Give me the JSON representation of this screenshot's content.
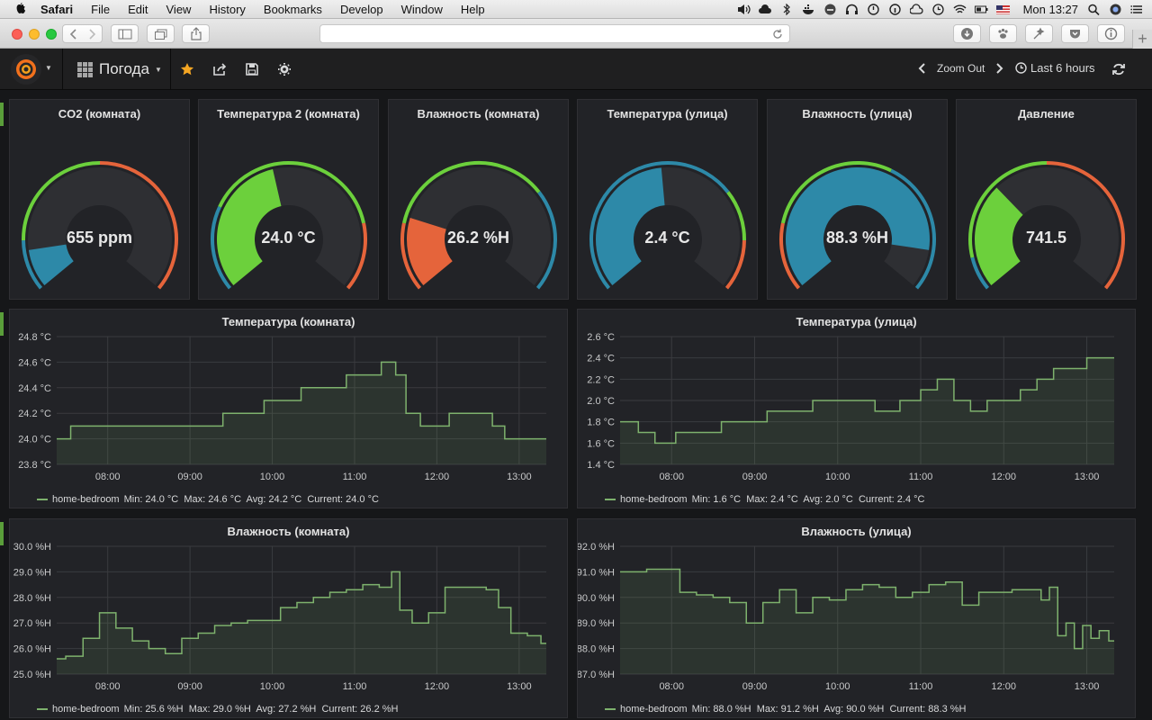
{
  "menubar": {
    "app": "Safari",
    "items": [
      "File",
      "Edit",
      "View",
      "History",
      "Bookmarks",
      "Develop",
      "Window",
      "Help"
    ],
    "clock": "Mon 13:27"
  },
  "navbar": {
    "dashboard_title": "Погода",
    "zoom_out": "Zoom Out",
    "time_range": "Last 6 hours"
  },
  "gauges": [
    {
      "title": "CO2 (комната)",
      "value": "655 ppm",
      "fraction": 0.12,
      "color": "#2d89a8",
      "thresholds": [
        {
          "to": 0.15,
          "color": "#2d89a8"
        },
        {
          "to": 0.5,
          "color": "#6cd03c"
        },
        {
          "to": 1,
          "color": "#e5643b"
        }
      ]
    },
    {
      "title": "Температура 2 (комната)",
      "value": "24.0 °C",
      "fraction": 0.45,
      "color": "#6cd03c",
      "thresholds": [
        {
          "to": 0.25,
          "color": "#2d89a8"
        },
        {
          "to": 0.8,
          "color": "#6cd03c"
        },
        {
          "to": 1,
          "color": "#e5643b"
        }
      ]
    },
    {
      "title": "Влажность (комната)",
      "value": "26.2 %H",
      "fraction": 0.22,
      "color": "#e5643b",
      "thresholds": [
        {
          "to": 0.2,
          "color": "#e5643b"
        },
        {
          "to": 0.7,
          "color": "#6cd03c"
        },
        {
          "to": 1,
          "color": "#2d89a8"
        }
      ]
    },
    {
      "title": "Температура (улица)",
      "value": "2.4 °C",
      "fraction": 0.48,
      "color": "#2d89a8",
      "thresholds": [
        {
          "to": 0.7,
          "color": "#2d89a8"
        },
        {
          "to": 0.85,
          "color": "#6cd03c"
        },
        {
          "to": 1,
          "color": "#e5643b"
        }
      ]
    },
    {
      "title": "Влажность (улица)",
      "value": "88.3 %H",
      "fraction": 0.88,
      "color": "#2d89a8",
      "thresholds": [
        {
          "to": 0.2,
          "color": "#e5643b"
        },
        {
          "to": 0.6,
          "color": "#6cd03c"
        },
        {
          "to": 1,
          "color": "#2d89a8"
        }
      ]
    },
    {
      "title": "Давление",
      "value": "741.5",
      "fraction": 0.33,
      "color": "#6cd03c",
      "thresholds": [
        {
          "to": 0.1,
          "color": "#2d89a8"
        },
        {
          "to": 0.5,
          "color": "#6cd03c"
        },
        {
          "to": 1,
          "color": "#e5643b"
        }
      ]
    }
  ],
  "chart_data": [
    {
      "type": "line",
      "title": "Температура (комната)",
      "yticks": [
        "24.8 °C",
        "24.6 °C",
        "24.4 °C",
        "24.2 °C",
        "24.0 °C",
        "23.8 °C"
      ],
      "ylim": [
        23.8,
        24.8
      ],
      "xticks": [
        "08:00",
        "09:00",
        "10:00",
        "11:00",
        "12:00",
        "13:00"
      ],
      "xtick_hours": [
        8,
        9,
        10,
        11,
        12,
        13
      ],
      "xlim": [
        7.38,
        13.33
      ],
      "x": [
        7.38,
        7.5,
        7.6,
        8.0,
        8.5,
        9.0,
        9.3,
        9.5,
        9.8,
        10.0,
        10.2,
        10.5,
        10.8,
        11.0,
        11.2,
        11.45,
        11.55,
        11.7,
        11.9,
        12.0,
        12.3,
        12.6,
        12.75,
        12.9,
        13.33
      ],
      "series": [
        {
          "name": "home-bedroom",
          "values": [
            24.0,
            24.0,
            24.1,
            24.1,
            24.1,
            24.1,
            24.1,
            24.2,
            24.2,
            24.3,
            24.3,
            24.4,
            24.4,
            24.5,
            24.5,
            24.6,
            24.5,
            24.2,
            24.1,
            24.1,
            24.2,
            24.2,
            24.1,
            24.0,
            24.0
          ]
        }
      ],
      "legend": "home-bedroom",
      "legend_stats": "Min: 24.0 °C  Max: 24.6 °C  Avg: 24.2 °C  Current: 24.0 °C"
    },
    {
      "type": "line",
      "title": "Температура (улица)",
      "yticks": [
        "2.6 °C",
        "2.4 °C",
        "2.2 °C",
        "2.0 °C",
        "1.8 °C",
        "1.6 °C",
        "1.4 °C"
      ],
      "ylim": [
        1.4,
        2.6
      ],
      "xticks": [
        "08:00",
        "09:00",
        "10:00",
        "11:00",
        "12:00",
        "13:00"
      ],
      "xtick_hours": [
        8,
        9,
        10,
        11,
        12,
        13
      ],
      "xlim": [
        7.38,
        13.33
      ],
      "x": [
        7.38,
        7.5,
        7.7,
        7.9,
        8.2,
        8.5,
        8.7,
        9.0,
        9.3,
        9.6,
        9.8,
        10.0,
        10.3,
        10.6,
        10.9,
        11.1,
        11.3,
        11.5,
        11.7,
        11.9,
        12.1,
        12.3,
        12.5,
        12.7,
        12.9,
        13.1,
        13.33
      ],
      "series": [
        {
          "name": "home-bedroom",
          "values": [
            1.8,
            1.8,
            1.7,
            1.6,
            1.7,
            1.7,
            1.8,
            1.8,
            1.9,
            1.9,
            2.0,
            2.0,
            2.0,
            1.9,
            2.0,
            2.1,
            2.2,
            2.0,
            1.9,
            2.0,
            2.0,
            2.1,
            2.2,
            2.3,
            2.3,
            2.4,
            2.4
          ]
        }
      ],
      "legend": "home-bedroom",
      "legend_stats": "Min: 1.6 °C  Max: 2.4 °C  Avg: 2.0 °C  Current: 2.4 °C"
    },
    {
      "type": "line",
      "title": "Влажность (комната)",
      "yticks": [
        "30.0 %H",
        "29.0 %H",
        "28.0 %H",
        "27.0 %H",
        "26.0 %H",
        "25.0 %H"
      ],
      "ylim": [
        25.0,
        30.0
      ],
      "xticks": [
        "08:00",
        "09:00",
        "10:00",
        "11:00",
        "12:00",
        "13:00"
      ],
      "xtick_hours": [
        8,
        9,
        10,
        11,
        12,
        13
      ],
      "xlim": [
        7.38,
        13.33
      ],
      "x": [
        7.38,
        7.6,
        7.8,
        8.0,
        8.2,
        8.4,
        8.6,
        8.8,
        9.0,
        9.2,
        9.4,
        9.6,
        9.8,
        10.0,
        10.2,
        10.4,
        10.6,
        10.8,
        11.0,
        11.2,
        11.4,
        11.5,
        11.6,
        11.8,
        12.0,
        12.2,
        12.5,
        12.7,
        12.8,
        13.0,
        13.2,
        13.33
      ],
      "series": [
        {
          "name": "home-bedroom",
          "values": [
            25.6,
            25.7,
            26.4,
            27.4,
            26.8,
            26.3,
            26.0,
            25.8,
            26.4,
            26.6,
            26.9,
            27.0,
            27.1,
            27.1,
            27.6,
            27.8,
            28.0,
            28.2,
            28.3,
            28.5,
            28.4,
            29.0,
            27.5,
            27.0,
            27.4,
            28.4,
            28.4,
            28.3,
            27.6,
            26.6,
            26.5,
            26.2
          ]
        }
      ],
      "legend": "home-bedroom",
      "legend_stats": "Min: 25.6 %H  Max: 29.0 %H  Avg: 27.2 %H  Current: 26.2 %H"
    },
    {
      "type": "line",
      "title": "Влажность (улица)",
      "yticks": [
        "92.0 %H",
        "91.0 %H",
        "90.0 %H",
        "89.0 %H",
        "88.0 %H",
        "87.0 %H"
      ],
      "ylim": [
        87.0,
        92.0
      ],
      "xticks": [
        "08:00",
        "09:00",
        "10:00",
        "11:00",
        "12:00",
        "13:00"
      ],
      "xtick_hours": [
        8,
        9,
        10,
        11,
        12,
        13
      ],
      "xlim": [
        7.38,
        13.33
      ],
      "x": [
        7.38,
        7.6,
        7.8,
        8.0,
        8.2,
        8.4,
        8.6,
        8.8,
        9.0,
        9.2,
        9.4,
        9.6,
        9.8,
        10.0,
        10.2,
        10.4,
        10.6,
        10.8,
        11.0,
        11.2,
        11.4,
        11.6,
        11.8,
        12.0,
        12.2,
        12.4,
        12.5,
        12.6,
        12.7,
        12.8,
        12.9,
        13.0,
        13.1,
        13.2,
        13.33
      ],
      "series": [
        {
          "name": "home-bedroom",
          "values": [
            91.0,
            91.0,
            91.1,
            91.1,
            90.2,
            90.1,
            90.0,
            89.8,
            89.0,
            89.8,
            90.3,
            89.4,
            90.0,
            89.9,
            90.3,
            90.5,
            90.4,
            90.0,
            90.2,
            90.5,
            90.6,
            89.7,
            90.2,
            90.2,
            90.3,
            90.3,
            89.9,
            90.4,
            88.5,
            89.0,
            88.0,
            88.9,
            88.4,
            88.7,
            88.3
          ]
        }
      ],
      "legend": "home-bedroom",
      "legend_stats": "Min: 88.0 %H  Max: 91.2 %H  Avg: 90.0 %H  Current: 88.3 %H"
    }
  ]
}
